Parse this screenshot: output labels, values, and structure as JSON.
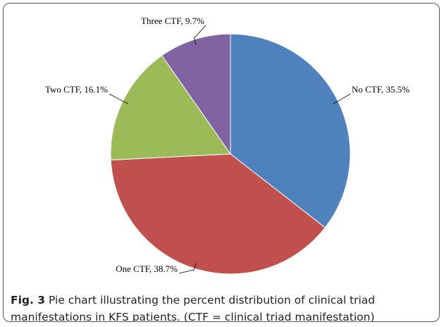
{
  "chart_data": {
    "type": "pie",
    "values": [
      35.5,
      38.7,
      16.1,
      9.7
    ],
    "value_labels": [
      "No CTF, 35.5%",
      "One CTF, 38.7%",
      "Two CTF, 16.1%",
      "Three CTF, 9.7%"
    ],
    "colors": [
      "#4f81bd",
      "#c0504d",
      "#9bbb59",
      "#8064a2"
    ]
  },
  "caption": {
    "label": "Fig. 3",
    "text": "Pie chart illustrating the percent distribution of clinical triad manifestations in KFS patients. (CTF = clinical triad manifestation)"
  }
}
